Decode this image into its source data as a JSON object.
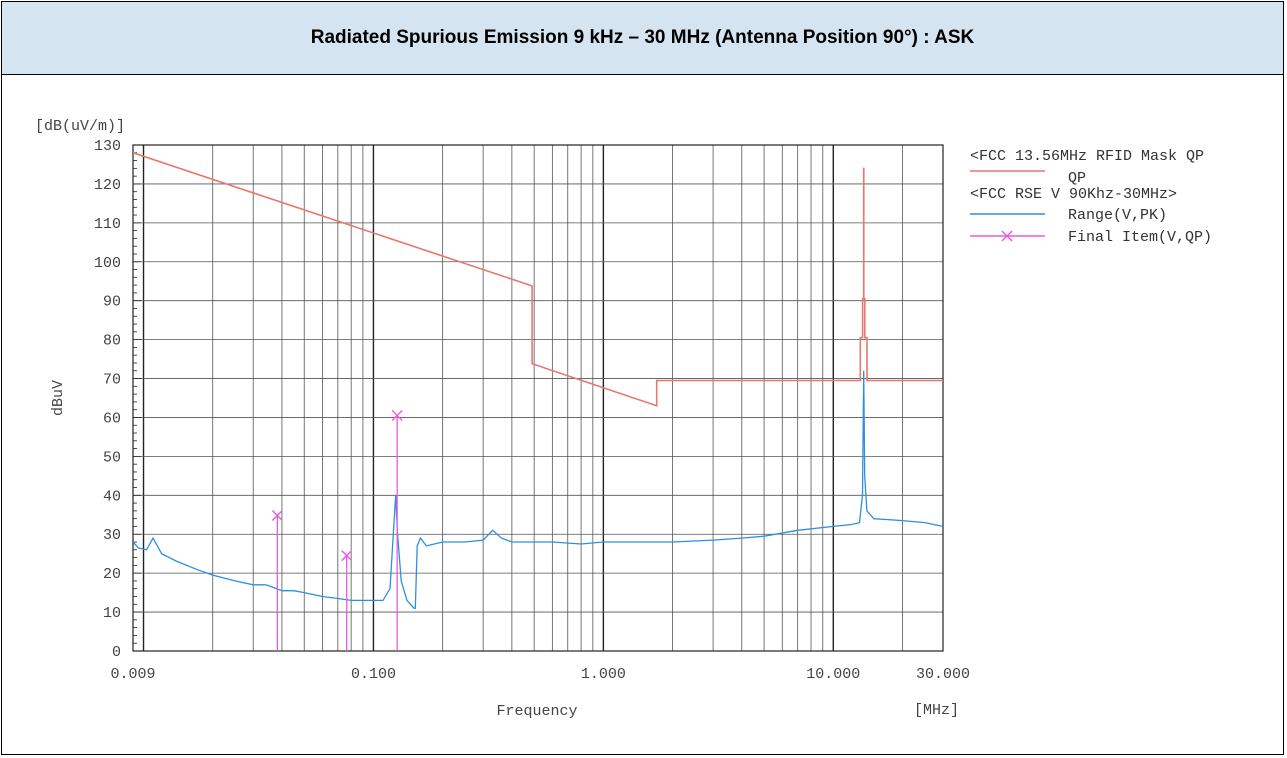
{
  "header": {
    "title": "Radiated Spurious Emission 9 kHz – 30 MHz (Antenna Position 90°) : ASK"
  },
  "chart_data": {
    "type": "line",
    "title": "Radiated Spurious Emission 9 kHz – 30 MHz (Antenna Position 90°) : ASK",
    "xlabel": "Frequency",
    "xunit": "[MHz]",
    "ylabel": "dBuV",
    "yunit": "[dB(uV/m)]",
    "x_scale": "log",
    "xlim": [
      0.009,
      30
    ],
    "ylim": [
      0,
      130
    ],
    "x_ticks": [
      {
        "value": 0.009,
        "label": "0.009"
      },
      {
        "value": 0.1,
        "label": "0.100"
      },
      {
        "value": 1,
        "label": "1.000"
      },
      {
        "value": 10,
        "label": "10.000"
      },
      {
        "value": 30,
        "label": "30.000"
      }
    ],
    "y_ticks": [
      0,
      10,
      20,
      30,
      40,
      50,
      60,
      70,
      80,
      90,
      100,
      110,
      120,
      130
    ],
    "grid": true,
    "legend": {
      "position": "right",
      "entries": [
        {
          "title": "<FCC 13.56MHz RFID Mask QP",
          "label": "QP",
          "color": "#e8776f",
          "marker": "line"
        },
        {
          "title": "<FCC RSE V 90Khz-30MHz>",
          "label": "Range(V,PK)",
          "color": "#2e8fe0",
          "marker": "line"
        },
        {
          "title": "",
          "label": "Final Item(V,QP)",
          "color": "#e85ce0",
          "marker": "x"
        }
      ]
    },
    "series": [
      {
        "name": "QP",
        "color": "#e8776f",
        "points": [
          [
            0.009,
            128
          ],
          [
            0.49,
            93.8
          ],
          [
            0.49,
            73.8
          ],
          [
            1.705,
            63
          ],
          [
            1.705,
            69.5
          ],
          [
            13.11,
            69.5
          ],
          [
            13.11,
            80.5
          ],
          [
            13.41,
            80.5
          ],
          [
            13.41,
            90.5
          ],
          [
            13.553,
            90.5
          ],
          [
            13.553,
            124
          ],
          [
            13.567,
            124
          ],
          [
            13.567,
            90.5
          ],
          [
            13.71,
            90.5
          ],
          [
            13.71,
            80.5
          ],
          [
            14.01,
            80.5
          ],
          [
            14.01,
            69.5
          ],
          [
            30,
            69.5
          ]
        ]
      },
      {
        "name": "Range(V,PK)",
        "color": "#2e8fe0",
        "points": [
          [
            0.009,
            28
          ],
          [
            0.0095,
            26.5
          ],
          [
            0.0103,
            26
          ],
          [
            0.011,
            29
          ],
          [
            0.012,
            25
          ],
          [
            0.014,
            23
          ],
          [
            0.017,
            21
          ],
          [
            0.02,
            19.5
          ],
          [
            0.025,
            18
          ],
          [
            0.03,
            17
          ],
          [
            0.034,
            17
          ],
          [
            0.036,
            16.5
          ],
          [
            0.038,
            16
          ],
          [
            0.04,
            15.5
          ],
          [
            0.045,
            15.5
          ],
          [
            0.05,
            15
          ],
          [
            0.06,
            14
          ],
          [
            0.07,
            13.5
          ],
          [
            0.08,
            13
          ],
          [
            0.09,
            13
          ],
          [
            0.1,
            13
          ],
          [
            0.11,
            13
          ],
          [
            0.118,
            16
          ],
          [
            0.122,
            30
          ],
          [
            0.125,
            40
          ],
          [
            0.127,
            31
          ],
          [
            0.132,
            18
          ],
          [
            0.14,
            13
          ],
          [
            0.15,
            11
          ],
          [
            0.152,
            11
          ],
          [
            0.155,
            27
          ],
          [
            0.16,
            29
          ],
          [
            0.17,
            27
          ],
          [
            0.2,
            28
          ],
          [
            0.25,
            28
          ],
          [
            0.3,
            28.5
          ],
          [
            0.33,
            31
          ],
          [
            0.36,
            29
          ],
          [
            0.4,
            28
          ],
          [
            0.5,
            28
          ],
          [
            0.6,
            28
          ],
          [
            0.8,
            27.5
          ],
          [
            1,
            28
          ],
          [
            1.5,
            28
          ],
          [
            2,
            28
          ],
          [
            3,
            28.5
          ],
          [
            4,
            29
          ],
          [
            5,
            29.5
          ],
          [
            7,
            31
          ],
          [
            10,
            32
          ],
          [
            12,
            32.5
          ],
          [
            13,
            33
          ],
          [
            13.4,
            40
          ],
          [
            13.56,
            72
          ],
          [
            13.7,
            45
          ],
          [
            14,
            36
          ],
          [
            15,
            34
          ],
          [
            20,
            33.5
          ],
          [
            25,
            33
          ],
          [
            30,
            32
          ]
        ]
      },
      {
        "name": "Final Item(V,QP)",
        "color": "#e85ce0",
        "points": [
          [
            0.0382,
            34.8
          ],
          [
            0.0765,
            24.5
          ],
          [
            0.1268,
            60.5
          ]
        ]
      }
    ]
  }
}
